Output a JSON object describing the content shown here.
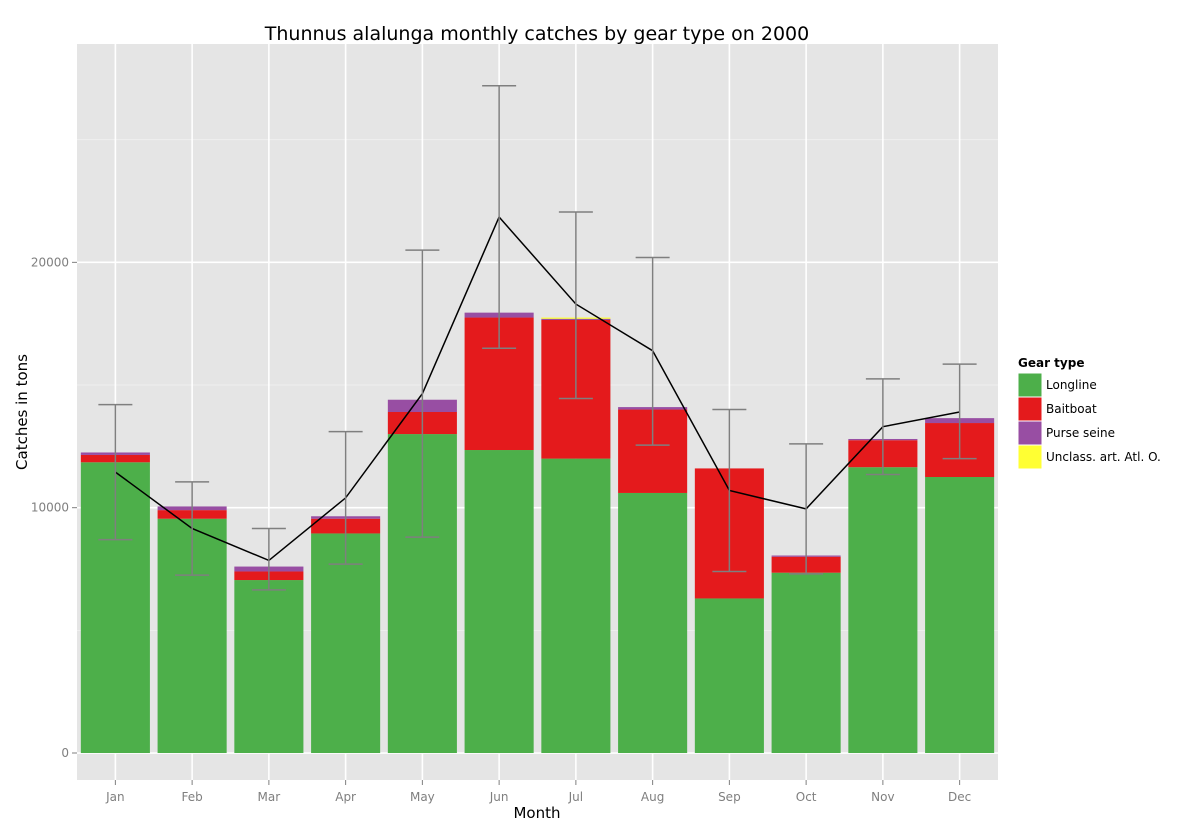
{
  "chart_data": {
    "type": "bar",
    "stacked": true,
    "title": "Thunnus alalunga monthly catches by gear type on 2000",
    "xlabel": "Month",
    "ylabel": "Catches in tons",
    "categories": [
      "Jan",
      "Feb",
      "Mar",
      "Apr",
      "May",
      "Jun",
      "Jul",
      "Aug",
      "Sep",
      "Oct",
      "Nov",
      "Dec"
    ],
    "ylim": [
      -1100,
      28900
    ],
    "yticks": [
      0,
      10000,
      20000
    ],
    "grid": true,
    "legend": {
      "title": "Gear type",
      "position": "right"
    },
    "series": [
      {
        "name": "Longline",
        "color": "#4DAF4A",
        "values": [
          11850,
          9550,
          7050,
          8950,
          13000,
          12350,
          12000,
          10600,
          6300,
          7350,
          11650,
          11250
        ]
      },
      {
        "name": "Baitboat",
        "color": "#E41A1C",
        "values": [
          300,
          350,
          350,
          600,
          900,
          5400,
          5650,
          3400,
          5300,
          650,
          1100,
          2200
        ]
      },
      {
        "name": "Purse seine",
        "color": "#984EA3",
        "values": [
          100,
          150,
          200,
          100,
          500,
          200,
          50,
          100,
          0,
          50,
          50,
          200
        ]
      },
      {
        "name": "Unclass. art. Atl. O.",
        "color": "#FFFF33",
        "values": [
          0,
          0,
          0,
          0,
          0,
          0,
          50,
          0,
          0,
          0,
          0,
          0
        ]
      }
    ],
    "line": {
      "color": "#000000",
      "values": [
        11450,
        9150,
        7850,
        10400,
        14650,
        21850,
        18300,
        16400,
        10700,
        9950,
        13300,
        13900
      ]
    },
    "error_bars": {
      "color": "#7f7f7f",
      "lower": [
        8700,
        7250,
        6650,
        7700,
        8800,
        16500,
        14450,
        12550,
        7400,
        7300,
        11350,
        12000
      ],
      "upper": [
        14200,
        11050,
        9150,
        13100,
        20500,
        27200,
        22050,
        20200,
        14000,
        12600,
        15250,
        15850
      ]
    }
  }
}
